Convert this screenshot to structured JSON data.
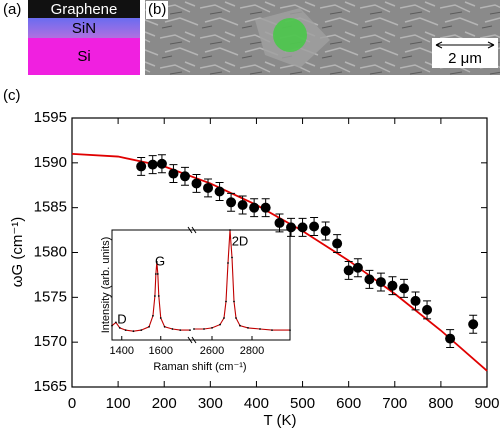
{
  "panels": {
    "a_label": "(a)",
    "layers": [
      "Graphene",
      "SiN",
      "Si"
    ],
    "b_label": "(b)",
    "scale_bar": "2 μm",
    "c_label": "(c)"
  },
  "chart_data": {
    "type": "scatter",
    "x_label": "T (K)",
    "y_label": "ωG (cm⁻¹)",
    "xlim": [
      0,
      900
    ],
    "xticks": [
      0,
      100,
      200,
      300,
      400,
      500,
      600,
      700,
      800,
      900
    ],
    "ylim": [
      1565,
      1595
    ],
    "yticks": [
      1565,
      1570,
      1575,
      1580,
      1585,
      1590,
      1595
    ],
    "points": {
      "color": "#000000",
      "x": [
        150,
        175,
        195,
        220,
        245,
        270,
        295,
        320,
        345,
        370,
        395,
        420,
        450,
        475,
        500,
        525,
        550,
        575,
        600,
        620,
        645,
        670,
        695,
        720,
        745,
        770,
        820,
        870
      ],
      "values": [
        1589.6,
        1589.8,
        1589.9,
        1588.8,
        1588.5,
        1587.7,
        1587.2,
        1586.8,
        1585.6,
        1585.3,
        1585.0,
        1585.0,
        1583.3,
        1582.8,
        1582.8,
        1582.9,
        1582.4,
        1581.0,
        1578.0,
        1578.3,
        1577.0,
        1576.7,
        1576.3,
        1576.0,
        1574.6,
        1573.6,
        1570.4,
        1572.0
      ],
      "errors": [
        1,
        1,
        1,
        1,
        1,
        1,
        1,
        1,
        1,
        1,
        1,
        1,
        1,
        1,
        1,
        1,
        1,
        1,
        1,
        1,
        1,
        1,
        1,
        1,
        1,
        1,
        1,
        1
      ]
    },
    "fit": {
      "color": "#e00000",
      "x": [
        0,
        100,
        200,
        300,
        400,
        500,
        600,
        700,
        800,
        900
      ],
      "values": [
        1591.0,
        1590.7,
        1589.6,
        1587.7,
        1585.3,
        1582.4,
        1579.1,
        1575.4,
        1571.3,
        1566.8
      ]
    },
    "inset": {
      "x_label": "Raman shift (cm⁻¹)",
      "y_label": "Intensity (arb. units)",
      "color": "#c00000",
      "ylim": [
        0,
        1
      ],
      "left": {
        "xlim": [
          1350,
          1750
        ],
        "xticks": [
          1400,
          1600
        ],
        "x": [
          1350,
          1370,
          1390,
          1420,
          1460,
          1500,
          1540,
          1560,
          1570,
          1575,
          1580,
          1585,
          1590,
          1600,
          1620,
          1660,
          1700,
          1750
        ],
        "values": [
          0.13,
          0.16,
          0.11,
          0.09,
          0.08,
          0.09,
          0.12,
          0.22,
          0.4,
          0.6,
          0.71,
          0.6,
          0.4,
          0.2,
          0.12,
          0.1,
          0.09,
          0.09
        ]
      },
      "right": {
        "xlim": [
          2510,
          2990
        ],
        "xticks": [
          2600,
          2800
        ],
        "x": [
          2510,
          2560,
          2600,
          2640,
          2660,
          2670,
          2680,
          2690,
          2700,
          2710,
          2720,
          2740,
          2780,
          2840,
          2900,
          2990
        ],
        "values": [
          0.1,
          0.1,
          0.11,
          0.14,
          0.2,
          0.35,
          0.7,
          1.0,
          0.75,
          0.35,
          0.2,
          0.13,
          0.11,
          0.1,
          0.09,
          0.09
        ]
      },
      "peaks": [
        "D",
        "G",
        "2D"
      ]
    }
  }
}
